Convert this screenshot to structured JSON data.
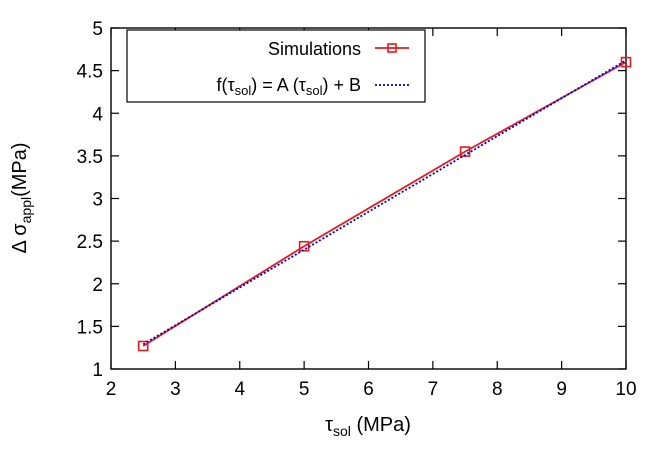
{
  "chart_data": {
    "type": "line",
    "x": [
      2.5,
      5,
      7.5,
      10
    ],
    "series": [
      {
        "name": "Simulations",
        "values": [
          1.27,
          2.44,
          3.55,
          4.6
        ],
        "color": "#e8191e",
        "style": "solid",
        "marker": "square"
      },
      {
        "name": "f(τsol) = A (τsol) + B",
        "values": [
          1.29,
          2.4,
          3.51,
          4.62
        ],
        "color": "#0000cc",
        "style": "dotted",
        "marker": "none"
      }
    ],
    "xlim": [
      2,
      10
    ],
    "ylim": [
      1,
      5
    ],
    "xticks": [
      2,
      3,
      4,
      5,
      6,
      7,
      8,
      9,
      10
    ],
    "yticks": [
      1,
      1.5,
      2,
      2.5,
      3,
      3.5,
      4,
      4.5,
      5
    ],
    "xticklabels": [
      "2",
      "3",
      "4",
      "5",
      "6",
      "7",
      "8",
      "9",
      "10"
    ],
    "yticklabels": [
      "1",
      "1.5",
      "2",
      "2.5",
      "3",
      "3.5",
      "4",
      "4.5",
      "5"
    ],
    "xlabel": {
      "main": "τ",
      "sub": "sol",
      "tail": " (MPa)"
    },
    "ylabel": {
      "main": "Δ σ",
      "sub": "appl",
      "tail": "(MPa)"
    },
    "legend": {
      "position": "top-left",
      "entries": [
        {
          "plain": "Simulations"
        },
        {
          "pre": "f(τ",
          "sub1": "sol",
          "mid": ") = A (τ",
          "sub2": "sol",
          "post": ") + B"
        }
      ]
    },
    "grid": false
  }
}
